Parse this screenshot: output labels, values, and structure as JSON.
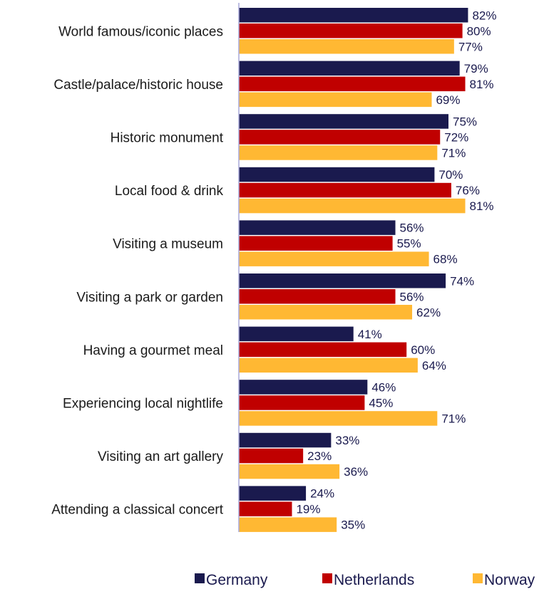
{
  "chart_data": {
    "type": "bar",
    "orientation": "horizontal",
    "categories": [
      "World famous/iconic places",
      "Castle/palace/historic house",
      "Historic monument",
      "Local food & drink",
      "Visiting a museum",
      "Visiting a park or garden",
      "Having a gourmet meal",
      "Experiencing local nightlife",
      "Visiting an art gallery",
      "Attending a classical concert"
    ],
    "series": [
      {
        "name": "Germany",
        "color": "#1a1a4e",
        "values": [
          82,
          79,
          75,
          70,
          56,
          74,
          41,
          46,
          33,
          24
        ],
        "labels": [
          "82%",
          "79%",
          "75%",
          "70%",
          "56%",
          "74%",
          "41%",
          "46%",
          "33%",
          "24%"
        ]
      },
      {
        "name": "Netherlands",
        "color": "#c00000",
        "values": [
          80,
          81,
          72,
          76,
          55,
          56,
          60,
          45,
          23,
          19
        ],
        "labels": [
          "80%",
          "81%",
          "72%",
          "76%",
          "55%",
          "56%",
          "60%",
          "45%",
          "23%",
          "19%"
        ]
      },
      {
        "name": "Norway",
        "color": "#ffb833",
        "values": [
          77,
          69,
          71,
          81,
          68,
          62,
          64,
          71,
          36,
          35
        ],
        "labels": [
          "77%",
          "69%",
          "71%",
          "81%",
          "68%",
          "62%",
          "64%",
          "71%",
          "36%",
          "35%"
        ]
      }
    ],
    "value_unit": "%",
    "xlim": [
      0,
      100
    ],
    "legend_position": "bottom-right",
    "grid": false
  }
}
